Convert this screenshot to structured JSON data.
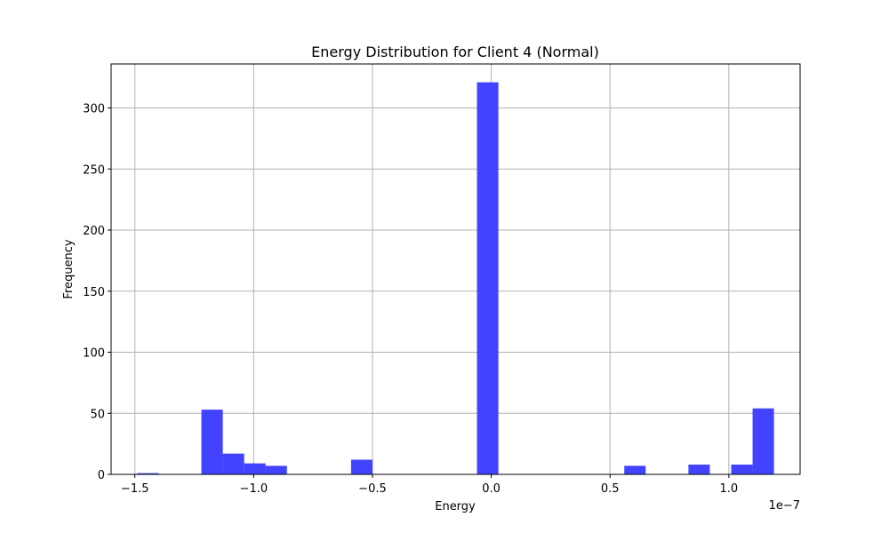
{
  "chart_data": {
    "type": "bar",
    "title": "Energy Distribution for Client 4 (Normal)",
    "xlabel": "Energy",
    "ylabel": "Frequency",
    "offset_label": "1e−7",
    "xlim": [
      -1.6e-07,
      1.3e-07
    ],
    "ylim": [
      0,
      336
    ],
    "xticks": [
      {
        "value": -1.5e-07,
        "label": "−1.5"
      },
      {
        "value": -1e-07,
        "label": "−1.0"
      },
      {
        "value": -5e-08,
        "label": "−0.5"
      },
      {
        "value": 0.0,
        "label": "0.0"
      },
      {
        "value": 5e-08,
        "label": "0.5"
      },
      {
        "value": 1e-07,
        "label": "1.0"
      }
    ],
    "yticks": [
      {
        "value": 0,
        "label": "0"
      },
      {
        "value": 50,
        "label": "50"
      },
      {
        "value": 100,
        "label": "100"
      },
      {
        "value": 150,
        "label": "150"
      },
      {
        "value": 200,
        "label": "200"
      },
      {
        "value": 250,
        "label": "250"
      },
      {
        "value": 300,
        "label": "300"
      }
    ],
    "grid": true,
    "color": "#4040ff",
    "bins": [
      {
        "x0": -1.49e-07,
        "x1": -1.4e-07,
        "count": 1
      },
      {
        "x0": -1.22e-07,
        "x1": -1.13e-07,
        "count": 53
      },
      {
        "x0": -1.13e-07,
        "x1": -1.04e-07,
        "count": 17
      },
      {
        "x0": -1.04e-07,
        "x1": -9.5e-08,
        "count": 9
      },
      {
        "x0": -9.5e-08,
        "x1": -8.6e-08,
        "count": 7
      },
      {
        "x0": -5.9e-08,
        "x1": -5e-08,
        "count": 12
      },
      {
        "x0": -6e-09,
        "x1": 3e-09,
        "count": 321
      },
      {
        "x0": 5.6e-08,
        "x1": 6.5e-08,
        "count": 7
      },
      {
        "x0": 8.3e-08,
        "x1": 9.2e-08,
        "count": 8
      },
      {
        "x0": 1.01e-07,
        "x1": 1.1e-07,
        "count": 8
      },
      {
        "x0": 1.1e-07,
        "x1": 1.19e-07,
        "count": 54
      }
    ]
  }
}
